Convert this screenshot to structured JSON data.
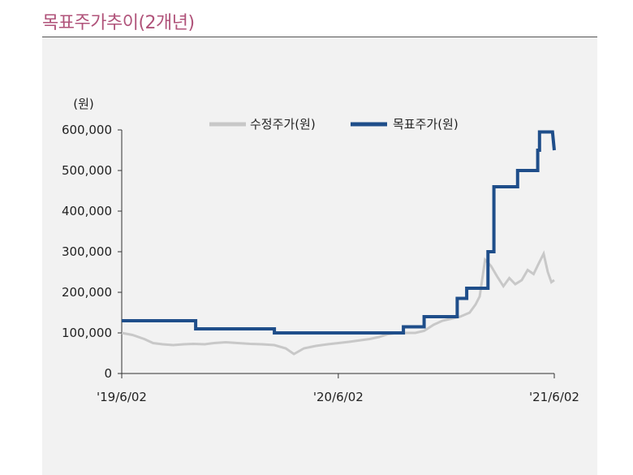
{
  "title": "목표주가추이(2개년)",
  "chart_data": {
    "type": "line",
    "unit_label": "(원)",
    "y_ticks": [
      0,
      100000,
      200000,
      300000,
      400000,
      500000,
      600000
    ],
    "y_tick_labels": [
      "0",
      "100,000",
      "200,000",
      "300,000",
      "400,000",
      "500,000",
      "600,000"
    ],
    "ylim": [
      0,
      600000
    ],
    "x_ticks": [
      "2019-06-02",
      "2020-06-02",
      "2021-06-02"
    ],
    "x_tick_labels": [
      "'19/6/02",
      "'20/6/02",
      "'21/6/02"
    ],
    "xlim": [
      "2019-06-02",
      "2021-06-02"
    ],
    "legend": [
      "수정주가(원)",
      "목표주가(원)"
    ],
    "colors": {
      "price": "#c8c8c8",
      "target": "#1f4e8a",
      "title": "#b0537a"
    },
    "series": [
      {
        "name": "수정주가(원)",
        "x": [
          "2019-06-02",
          "2019-06-20",
          "2019-07-10",
          "2019-07-25",
          "2019-08-10",
          "2019-08-28",
          "2019-09-15",
          "2019-10-01",
          "2019-10-20",
          "2019-11-05",
          "2019-11-25",
          "2019-12-15",
          "2020-01-05",
          "2020-01-25",
          "2020-02-15",
          "2020-03-05",
          "2020-03-19",
          "2020-04-05",
          "2020-04-25",
          "2020-05-15",
          "2020-06-02",
          "2020-06-20",
          "2020-07-10",
          "2020-07-25",
          "2020-08-10",
          "2020-08-25",
          "2020-09-10",
          "2020-09-25",
          "2020-10-10",
          "2020-10-25",
          "2020-11-10",
          "2020-11-25",
          "2020-12-10",
          "2020-12-25",
          "2021-01-10",
          "2021-01-20",
          "2021-01-27",
          "2021-02-05",
          "2021-02-15",
          "2021-02-25",
          "2021-03-08",
          "2021-03-18",
          "2021-03-28",
          "2021-04-08",
          "2021-04-18",
          "2021-04-28",
          "2021-05-08",
          "2021-05-15",
          "2021-05-22",
          "2021-05-28",
          "2021-06-02"
        ],
        "values": [
          100000,
          95000,
          85000,
          75000,
          72000,
          70000,
          72000,
          73000,
          72000,
          75000,
          77000,
          75000,
          73000,
          72000,
          70000,
          62000,
          48000,
          62000,
          68000,
          72000,
          75000,
          78000,
          82000,
          85000,
          90000,
          97000,
          100000,
          100000,
          100000,
          105000,
          120000,
          130000,
          135000,
          140000,
          150000,
          170000,
          190000,
          280000,
          265000,
          240000,
          215000,
          235000,
          220000,
          230000,
          255000,
          245000,
          275000,
          295000,
          250000,
          225000,
          230000
        ]
      },
      {
        "name": "목표주가(원)",
        "x": [
          "2019-06-02",
          "2019-10-05",
          "2019-10-05",
          "2020-02-15",
          "2020-02-15",
          "2020-09-20",
          "2020-09-20",
          "2020-10-25",
          "2020-10-25",
          "2020-12-20",
          "2020-12-20",
          "2021-01-05",
          "2021-01-05",
          "2021-02-10",
          "2021-02-10",
          "2021-02-20",
          "2021-02-20",
          "2021-04-01",
          "2021-04-01",
          "2021-05-05",
          "2021-05-05",
          "2021-05-08",
          "2021-05-08",
          "2021-05-30",
          "2021-05-30",
          "2021-06-02"
        ],
        "values": [
          130000,
          130000,
          110000,
          110000,
          100000,
          100000,
          115000,
          115000,
          140000,
          140000,
          185000,
          185000,
          210000,
          210000,
          300000,
          300000,
          460000,
          460000,
          500000,
          500000,
          550000,
          550000,
          595000,
          595000,
          595000,
          550000
        ]
      }
    ],
    "grid": false,
    "legend_position": "top-center"
  }
}
